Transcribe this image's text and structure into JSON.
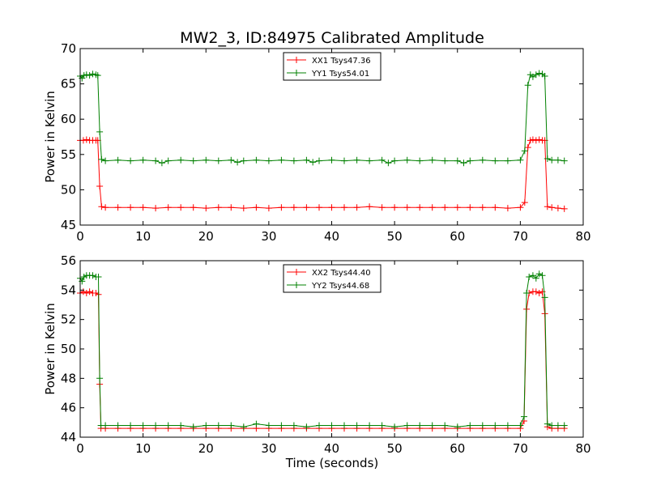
{
  "colors": {
    "xx": "#ff0000",
    "yy": "#008000"
  },
  "chart_data": [
    {
      "type": "line",
      "title": "MW2_3, ID:84975 Calibrated Amplitude",
      "xlabel": "",
      "ylabel": "Power in Kelvin",
      "xlim": [
        0,
        80
      ],
      "ylim": [
        45,
        70
      ],
      "xticks": [
        "0",
        "10",
        "20",
        "30",
        "40",
        "50",
        "60",
        "70",
        "80"
      ],
      "yticks": [
        "45",
        "50",
        "55",
        "60",
        "65",
        "70"
      ],
      "legend_position": "top-center",
      "marker": "+",
      "grid": false,
      "series": [
        {
          "name": "XX1 Tsys47.36",
          "color": "#ff0000",
          "points": [
            [
              0,
              57.0
            ],
            [
              0.5,
              57.0
            ],
            [
              1,
              57.1
            ],
            [
              1.5,
              57.0
            ],
            [
              2,
              57.0
            ],
            [
              2.5,
              57.0
            ],
            [
              2.8,
              57.0
            ],
            [
              3.1,
              50.5
            ],
            [
              3.4,
              47.6
            ],
            [
              4,
              47.5
            ],
            [
              6,
              47.5
            ],
            [
              8,
              47.5
            ],
            [
              10,
              47.5
            ],
            [
              12,
              47.4
            ],
            [
              14,
              47.5
            ],
            [
              16,
              47.5
            ],
            [
              18,
              47.5
            ],
            [
              20,
              47.4
            ],
            [
              22,
              47.5
            ],
            [
              24,
              47.5
            ],
            [
              26,
              47.4
            ],
            [
              28,
              47.5
            ],
            [
              30,
              47.4
            ],
            [
              32,
              47.5
            ],
            [
              34,
              47.5
            ],
            [
              36,
              47.5
            ],
            [
              38,
              47.5
            ],
            [
              40,
              47.5
            ],
            [
              42,
              47.5
            ],
            [
              44,
              47.5
            ],
            [
              46,
              47.6
            ],
            [
              48,
              47.5
            ],
            [
              50,
              47.5
            ],
            [
              52,
              47.5
            ],
            [
              54,
              47.5
            ],
            [
              56,
              47.5
            ],
            [
              58,
              47.5
            ],
            [
              60,
              47.5
            ],
            [
              62,
              47.5
            ],
            [
              64,
              47.5
            ],
            [
              66,
              47.5
            ],
            [
              68,
              47.4
            ],
            [
              70,
              47.5
            ],
            [
              70.7,
              48.2
            ],
            [
              71.2,
              56.0
            ],
            [
              71.6,
              57.0
            ],
            [
              72,
              57.1
            ],
            [
              72.5,
              57.0
            ],
            [
              73,
              57.1
            ],
            [
              73.5,
              57.0
            ],
            [
              73.9,
              57.0
            ],
            [
              74.3,
              47.6
            ],
            [
              75,
              47.5
            ],
            [
              76,
              47.4
            ],
            [
              77,
              47.3
            ]
          ]
        },
        {
          "name": "YY1 Tsys54.01",
          "color": "#008000",
          "points": [
            [
              0,
              66.1
            ],
            [
              0.3,
              65.8
            ],
            [
              0.6,
              66.2
            ],
            [
              1,
              66.3
            ],
            [
              1.5,
              66.2
            ],
            [
              2,
              66.4
            ],
            [
              2.5,
              66.3
            ],
            [
              2.8,
              66.2
            ],
            [
              3.1,
              58.2
            ],
            [
              3.4,
              54.3
            ],
            [
              4,
              54.1
            ],
            [
              6,
              54.2
            ],
            [
              8,
              54.1
            ],
            [
              10,
              54.2
            ],
            [
              12,
              54.1
            ],
            [
              13,
              53.8
            ],
            [
              14,
              54.1
            ],
            [
              16,
              54.2
            ],
            [
              18,
              54.1
            ],
            [
              20,
              54.2
            ],
            [
              22,
              54.1
            ],
            [
              24,
              54.2
            ],
            [
              25,
              53.9
            ],
            [
              26,
              54.1
            ],
            [
              28,
              54.2
            ],
            [
              30,
              54.1
            ],
            [
              32,
              54.2
            ],
            [
              34,
              54.1
            ],
            [
              36,
              54.2
            ],
            [
              37,
              53.9
            ],
            [
              38,
              54.1
            ],
            [
              40,
              54.2
            ],
            [
              42,
              54.1
            ],
            [
              44,
              54.2
            ],
            [
              46,
              54.1
            ],
            [
              48,
              54.2
            ],
            [
              49,
              53.8
            ],
            [
              50,
              54.1
            ],
            [
              52,
              54.2
            ],
            [
              54,
              54.1
            ],
            [
              56,
              54.2
            ],
            [
              58,
              54.1
            ],
            [
              60,
              54.1
            ],
            [
              61,
              53.8
            ],
            [
              62,
              54.1
            ],
            [
              64,
              54.2
            ],
            [
              66,
              54.1
            ],
            [
              68,
              54.1
            ],
            [
              70,
              54.2
            ],
            [
              70.7,
              55.5
            ],
            [
              71.2,
              64.8
            ],
            [
              71.6,
              66.3
            ],
            [
              72,
              66.0
            ],
            [
              72.5,
              66.3
            ],
            [
              73,
              66.5
            ],
            [
              73.5,
              66.4
            ],
            [
              73.9,
              66.1
            ],
            [
              74.3,
              54.4
            ],
            [
              75,
              54.2
            ],
            [
              76,
              54.2
            ],
            [
              77,
              54.1
            ]
          ]
        }
      ]
    },
    {
      "type": "line",
      "title": "",
      "xlabel": "Time (seconds)",
      "ylabel": "Power in Kelvin",
      "xlim": [
        0,
        80
      ],
      "ylim": [
        44,
        56
      ],
      "xticks": [
        "0",
        "10",
        "20",
        "30",
        "40",
        "50",
        "60",
        "70",
        "80"
      ],
      "yticks": [
        "44",
        "46",
        "48",
        "50",
        "52",
        "54",
        "56"
      ],
      "legend_position": "top-center",
      "marker": "+",
      "grid": false,
      "series": [
        {
          "name": "XX2 Tsys44.40",
          "color": "#ff0000",
          "points": [
            [
              0,
              53.8
            ],
            [
              0.5,
              53.9
            ],
            [
              1,
              53.8
            ],
            [
              1.5,
              53.9
            ],
            [
              2,
              53.8
            ],
            [
              2.5,
              53.8
            ],
            [
              2.9,
              53.7
            ],
            [
              3.1,
              47.6
            ],
            [
              3.3,
              44.6
            ],
            [
              4,
              44.6
            ],
            [
              6,
              44.6
            ],
            [
              8,
              44.6
            ],
            [
              10,
              44.6
            ],
            [
              12,
              44.6
            ],
            [
              14,
              44.6
            ],
            [
              16,
              44.6
            ],
            [
              18,
              44.6
            ],
            [
              20,
              44.6
            ],
            [
              22,
              44.6
            ],
            [
              24,
              44.6
            ],
            [
              26,
              44.6
            ],
            [
              28,
              44.6
            ],
            [
              30,
              44.6
            ],
            [
              32,
              44.6
            ],
            [
              34,
              44.6
            ],
            [
              36,
              44.6
            ],
            [
              38,
              44.6
            ],
            [
              40,
              44.6
            ],
            [
              42,
              44.6
            ],
            [
              44,
              44.6
            ],
            [
              46,
              44.6
            ],
            [
              48,
              44.6
            ],
            [
              50,
              44.6
            ],
            [
              52,
              44.6
            ],
            [
              54,
              44.6
            ],
            [
              56,
              44.6
            ],
            [
              58,
              44.6
            ],
            [
              60,
              44.6
            ],
            [
              62,
              44.6
            ],
            [
              64,
              44.6
            ],
            [
              66,
              44.6
            ],
            [
              68,
              44.6
            ],
            [
              70,
              44.6
            ],
            [
              70.6,
              45.1
            ],
            [
              71,
              52.7
            ],
            [
              71.4,
              53.8
            ],
            [
              72,
              53.9
            ],
            [
              72.5,
              53.9
            ],
            [
              73,
              53.8
            ],
            [
              73.5,
              53.9
            ],
            [
              73.9,
              52.4
            ],
            [
              74.3,
              44.7
            ],
            [
              75,
              44.6
            ],
            [
              76,
              44.6
            ],
            [
              77,
              44.6
            ]
          ]
        },
        {
          "name": "YY2 Tsys44.68",
          "color": "#008000",
          "points": [
            [
              0,
              54.8
            ],
            [
              0.3,
              54.6
            ],
            [
              0.6,
              54.9
            ],
            [
              1,
              55.0
            ],
            [
              1.5,
              55.0
            ],
            [
              2,
              55.0
            ],
            [
              2.5,
              54.9
            ],
            [
              2.9,
              54.9
            ],
            [
              3.1,
              48.0
            ],
            [
              3.3,
              44.8
            ],
            [
              4,
              44.8
            ],
            [
              6,
              44.8
            ],
            [
              8,
              44.8
            ],
            [
              10,
              44.8
            ],
            [
              12,
              44.8
            ],
            [
              14,
              44.8
            ],
            [
              16,
              44.8
            ],
            [
              18,
              44.7
            ],
            [
              20,
              44.8
            ],
            [
              22,
              44.8
            ],
            [
              24,
              44.8
            ],
            [
              26,
              44.7
            ],
            [
              28,
              44.9
            ],
            [
              30,
              44.8
            ],
            [
              32,
              44.8
            ],
            [
              34,
              44.8
            ],
            [
              36,
              44.7
            ],
            [
              38,
              44.8
            ],
            [
              40,
              44.8
            ],
            [
              42,
              44.8
            ],
            [
              44,
              44.8
            ],
            [
              46,
              44.8
            ],
            [
              48,
              44.8
            ],
            [
              50,
              44.7
            ],
            [
              52,
              44.8
            ],
            [
              54,
              44.8
            ],
            [
              56,
              44.8
            ],
            [
              58,
              44.8
            ],
            [
              60,
              44.7
            ],
            [
              62,
              44.8
            ],
            [
              64,
              44.8
            ],
            [
              66,
              44.8
            ],
            [
              68,
              44.8
            ],
            [
              70,
              44.8
            ],
            [
              70.6,
              45.4
            ],
            [
              71,
              53.8
            ],
            [
              71.4,
              54.9
            ],
            [
              72,
              55.0
            ],
            [
              72.5,
              54.8
            ],
            [
              73,
              55.1
            ],
            [
              73.5,
              55.0
            ],
            [
              73.9,
              53.5
            ],
            [
              74.3,
              44.9
            ],
            [
              75,
              44.8
            ],
            [
              76,
              44.8
            ],
            [
              77,
              44.8
            ]
          ]
        }
      ]
    }
  ]
}
